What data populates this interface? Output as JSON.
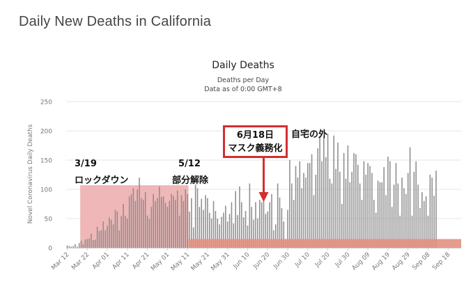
{
  "page_title": "Daily New Deaths in California",
  "chart_data": {
    "type": "bar",
    "title": "Daily Deaths",
    "subtitle_1": "Deaths per Day",
    "subtitle_2": "Data as of 0:00 GMT+8",
    "ylabel": "Novel Coronavirus Daily Deaths",
    "ylim": [
      0,
      250
    ],
    "yticks": [
      0,
      50,
      100,
      150,
      200,
      250
    ],
    "grid": true,
    "x_start": "2020-03-12",
    "x_end": "2020-09-24",
    "xtick_labels": [
      "Mar 12",
      "Mar 22",
      "Apr 01",
      "Apr 11",
      "Apr 21",
      "May 01",
      "May 11",
      "May 21",
      "May 31",
      "Jun 10",
      "Jun 20",
      "Jun 30",
      "Jul 10",
      "Jul 20",
      "Jul 30",
      "Aug 09",
      "Aug 19",
      "Aug 29",
      "Sep 08",
      "Sep 18"
    ],
    "values": [
      4,
      3,
      2,
      3,
      6,
      2,
      8,
      12,
      6,
      14,
      15,
      16,
      24,
      13,
      14,
      36,
      29,
      30,
      45,
      30,
      38,
      52,
      48,
      40,
      65,
      62,
      30,
      54,
      75,
      55,
      50,
      88,
      92,
      102,
      80,
      100,
      120,
      85,
      82,
      95,
      55,
      50,
      70,
      92,
      80,
      85,
      105,
      87,
      88,
      77,
      70,
      80,
      92,
      89,
      82,
      98,
      55,
      90,
      80,
      100,
      92,
      62,
      85,
      35,
      108,
      102,
      70,
      84,
      65,
      90,
      85,
      60,
      50,
      80,
      63,
      50,
      40,
      53,
      60,
      72,
      45,
      58,
      78,
      42,
      97,
      56,
      105,
      78,
      52,
      63,
      38,
      110,
      70,
      48,
      78,
      50,
      82,
      78,
      85,
      58,
      62,
      78,
      92,
      30,
      40,
      110,
      86,
      68,
      45,
      15,
      65,
      150,
      110,
      82,
      140,
      120,
      148,
      102,
      128,
      120,
      145,
      145,
      160,
      90,
      125,
      170,
      190,
      148,
      190,
      155,
      195,
      118,
      110,
      192,
      135,
      180,
      130,
      75,
      162,
      118,
      175,
      112,
      130,
      162,
      160,
      142,
      110,
      82,
      148,
      125,
      145,
      140,
      128,
      82,
      60,
      115,
      112,
      112,
      138,
      90,
      156,
      148,
      70,
      108,
      145,
      110,
      55,
      120,
      102,
      92,
      128,
      172,
      55,
      130,
      148,
      108,
      68,
      95,
      80,
      88,
      55,
      125,
      120,
      89,
      132
    ],
    "shaded_region": {
      "from": "2020-03-19",
      "to": "2020-05-11",
      "ymax": 107,
      "color": "#ecaaaa"
    },
    "baseline_band": {
      "from": "2020-05-12",
      "to": "2020-09-24",
      "ymax": 15,
      "color": "#e2917f"
    },
    "annotations": {
      "lockdown_date": "3/19",
      "lockdown_label": "ロックダウン",
      "partial_lift_date": "5/12",
      "partial_lift_label": "部分解除",
      "mask_date": "6月18日",
      "mask_label": "マスク義務化",
      "outside_label": "自宅の外",
      "arrow_date": "2020-06-18"
    },
    "colors": {
      "bar": "#8f8f8f",
      "grid": "#e6e6e6",
      "arrow": "#d22f2f",
      "box_border": "#d22f2f"
    }
  }
}
